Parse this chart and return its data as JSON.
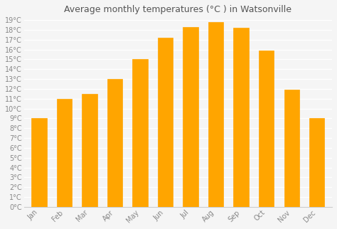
{
  "months": [
    "Jan",
    "Feb",
    "Mar",
    "Apr",
    "May",
    "Jun",
    "Jul",
    "Aug",
    "Sep",
    "Oct",
    "Nov",
    "Dec"
  ],
  "temperatures": [
    9,
    11,
    11.5,
    13,
    15,
    17.2,
    18.3,
    18.8,
    18.2,
    15.9,
    11.9,
    9
  ],
  "bar_color": "#FFA500",
  "bar_edge_color": "#FF8C00",
  "title": "Average monthly temperatures (°C ) in Watsonville",
  "ylabel": "",
  "ylim": [
    0,
    19
  ],
  "yticks": [
    0,
    1,
    2,
    3,
    4,
    5,
    6,
    7,
    8,
    9,
    10,
    11,
    12,
    13,
    14,
    15,
    16,
    17,
    18,
    19
  ],
  "ytick_labels": [
    "0°C",
    "1°C",
    "2°C",
    "3°C",
    "4°C",
    "5°C",
    "6°C",
    "7°C",
    "8°C",
    "9°C",
    "10°C",
    "11°C",
    "12°C",
    "13°C",
    "14°C",
    "15°C",
    "16°C",
    "17°C",
    "18°C",
    "19°C"
  ],
  "background_color": "#f5f5f5",
  "grid_color": "#ffffff",
  "title_fontsize": 9,
  "tick_fontsize": 7,
  "bar_width": 0.6
}
